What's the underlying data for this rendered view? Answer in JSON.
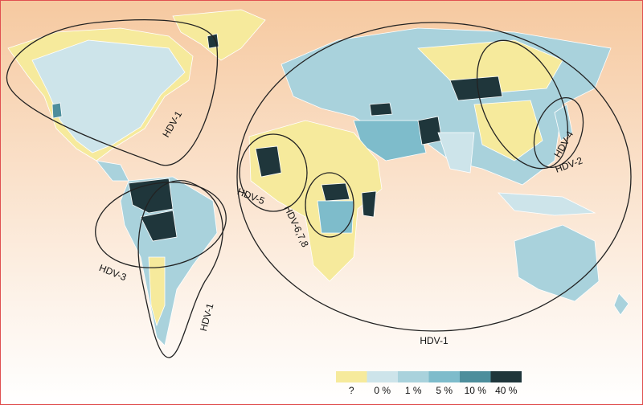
{
  "map": {
    "genotype_labels": [
      "HDV-1",
      "HDV-1",
      "HDV-1",
      "HDV-3",
      "HDV-5",
      "HDV-6,7,8",
      "HDV-4",
      "HDV-2"
    ],
    "legend": [
      {
        "label": "?",
        "color": "#f6ea9c"
      },
      {
        "label": "0 %",
        "color": "#cde4ea"
      },
      {
        "label": "1 %",
        "color": "#a9d2dc"
      },
      {
        "label": "5 %",
        "color": "#7ebccb"
      },
      {
        "label": "10 %",
        "color": "#4d8e9c"
      },
      {
        "label": "40 %",
        "color": "#1f363b"
      }
    ]
  }
}
